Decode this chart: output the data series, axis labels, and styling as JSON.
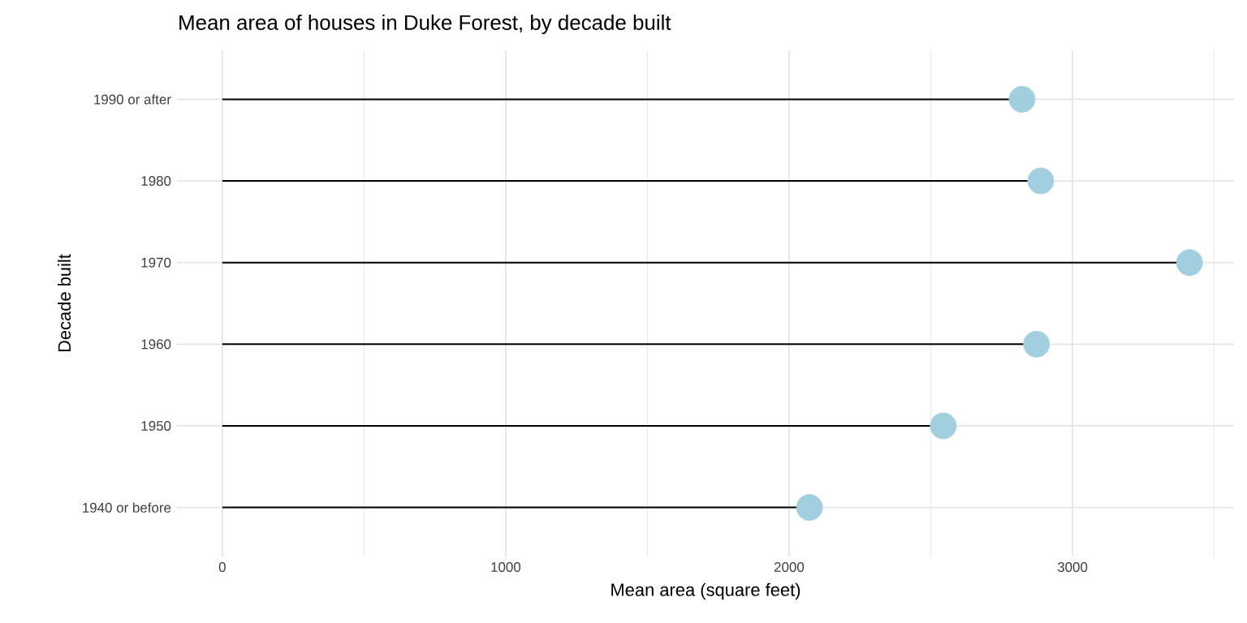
{
  "chart_data": {
    "type": "lollipop",
    "orientation": "horizontal",
    "title": "Mean area of houses in Duke Forest, by decade built",
    "xlabel": "Mean area (square feet)",
    "ylabel": "Decade built",
    "categories": [
      "1990 or after",
      "1980",
      "1970",
      "1960",
      "1950",
      "1940 or before"
    ],
    "values": [
      2822,
      2888,
      3413,
      2873,
      2544,
      2072
    ],
    "color": "#a2cfe0",
    "marker": "circle",
    "grid": true,
    "xlim": [
      -160,
      3570
    ],
    "xticks": [
      0,
      {
        "value": 500,
        "label": null
      },
      1000,
      {
        "value": 1500,
        "label": null
      },
      2000,
      {
        "value": 2500,
        "label": null
      },
      3000,
      {
        "value": 3500,
        "label": null
      }
    ]
  }
}
